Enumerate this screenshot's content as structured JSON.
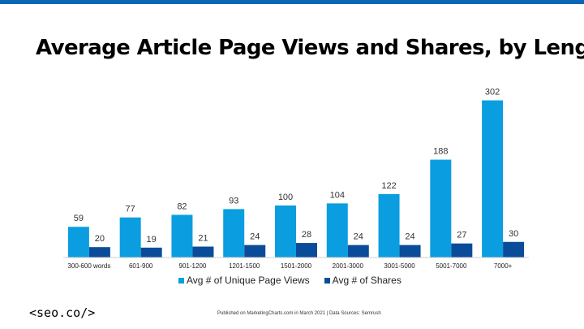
{
  "title": "Average Article Page Views and Shares, by Length",
  "logo_text": "<seo.co/>",
  "footnote": "Published on MarketingCharts.com in March 2021 | Data Sources: Semrush",
  "colors": {
    "top_bar": "#0a66b7",
    "series_views": "#0a9ee0",
    "series_shares": "#0b4c9a"
  },
  "chart_data": {
    "type": "bar",
    "title": "Average Article Page Views and Shares, by Length",
    "xlabel": "",
    "ylabel": "",
    "ylim": [
      0,
      320
    ],
    "grid": false,
    "legend_position": "bottom",
    "categories": [
      "300-600 words",
      "601-900",
      "901-1200",
      "1201-1500",
      "1501-2000",
      "2001-3000",
      "3001-5000",
      "5001-7000",
      "7000+"
    ],
    "series": [
      {
        "name": "Avg # of Unique Page Views",
        "values": [
          59,
          77,
          82,
          93,
          100,
          104,
          122,
          188,
          302
        ]
      },
      {
        "name": "Avg # of Shares",
        "values": [
          20,
          19,
          21,
          24,
          28,
          24,
          24,
          27,
          30
        ]
      }
    ]
  }
}
